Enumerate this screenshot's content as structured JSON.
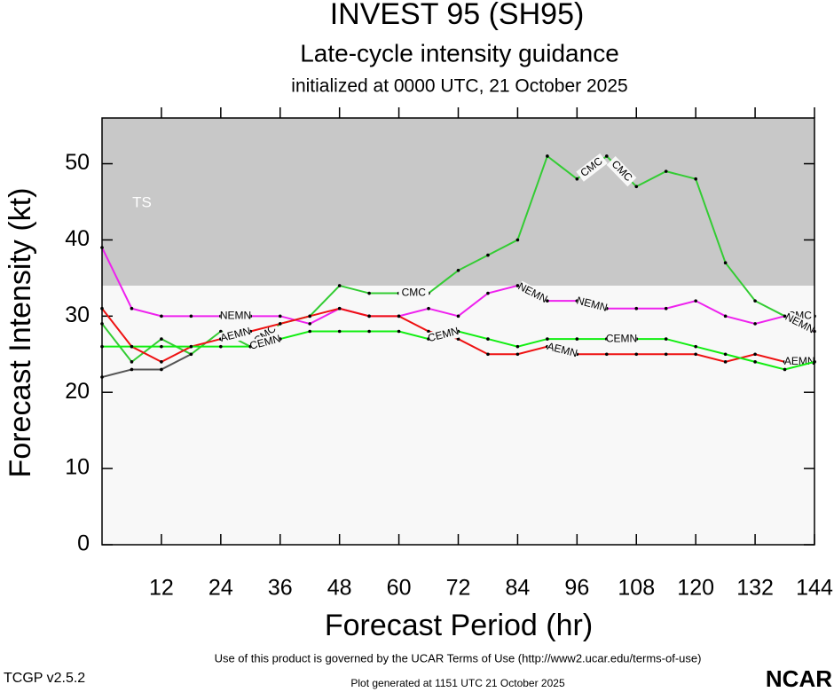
{
  "chart_data": {
    "type": "line",
    "title": "INVEST 95 (SH95)",
    "subtitle": "Late-cycle intensity guidance",
    "initialized": "initialized at 0000 UTC, 21 October 2025",
    "x_label": "Forecast Period (hr)",
    "y_label": "Forecast Intensity (kt)",
    "x": [
      0,
      6,
      12,
      18,
      24,
      30,
      36,
      42,
      48,
      54,
      60,
      66,
      72,
      78,
      84,
      90,
      96,
      102,
      108,
      114,
      120,
      126,
      132,
      138,
      144
    ],
    "xlim": [
      0,
      144
    ],
    "xticks": [
      12,
      24,
      36,
      48,
      60,
      72,
      84,
      96,
      108,
      120,
      132,
      144
    ],
    "ylim": [
      0,
      56
    ],
    "yticks": [
      0,
      10,
      20,
      30,
      40,
      50
    ],
    "band": {
      "label": "TS",
      "min": 34,
      "color": "#c8c8c8"
    },
    "background": "#f8f8f8",
    "series": [
      {
        "color": "#555555",
        "values": [
          22,
          23,
          23,
          25,
          null,
          null,
          null,
          null,
          null,
          null,
          null,
          null,
          null,
          null,
          null,
          null,
          null,
          null,
          null,
          null,
          null,
          null,
          null,
          null,
          null
        ]
      },
      {
        "name": "CMC",
        "color": "#33cc33",
        "values": [
          29,
          24,
          27,
          25,
          28,
          26,
          29,
          30,
          34,
          33,
          33,
          33,
          36,
          38,
          40,
          51,
          48,
          51,
          47,
          49,
          48,
          37,
          32,
          30,
          30
        ]
      },
      {
        "name": "NEMN",
        "color": "#ee22ee",
        "values": [
          39,
          31,
          30,
          30,
          30,
          30,
          30,
          29,
          31,
          30,
          30,
          31,
          30,
          33,
          34,
          32,
          32,
          31,
          31,
          31,
          32,
          30,
          29,
          30,
          28
        ]
      },
      {
        "name": "AEMN",
        "color": "#ee1111",
        "values": [
          31,
          26,
          24,
          26,
          27,
          28,
          29,
          30,
          31,
          30,
          30,
          28,
          27,
          25,
          25,
          26,
          25,
          25,
          25,
          25,
          25,
          24,
          25,
          24,
          24
        ]
      },
      {
        "name": "CEMN",
        "color": "#11ee11",
        "values": [
          26,
          26,
          26,
          26,
          26,
          26,
          27,
          28,
          28,
          28,
          28,
          27,
          28,
          27,
          26,
          27,
          27,
          27,
          27,
          27,
          26,
          25,
          24,
          23,
          24
        ]
      }
    ]
  },
  "footer": {
    "terms": "Use of this product is governed by the UCAR Terms of Use (http://www2.ucar.edu/terms-of-use)",
    "version": "TCGP v2.5.2",
    "generated": "Plot generated at 1151 UTC   21 October 2025",
    "logo": "NCAR"
  }
}
